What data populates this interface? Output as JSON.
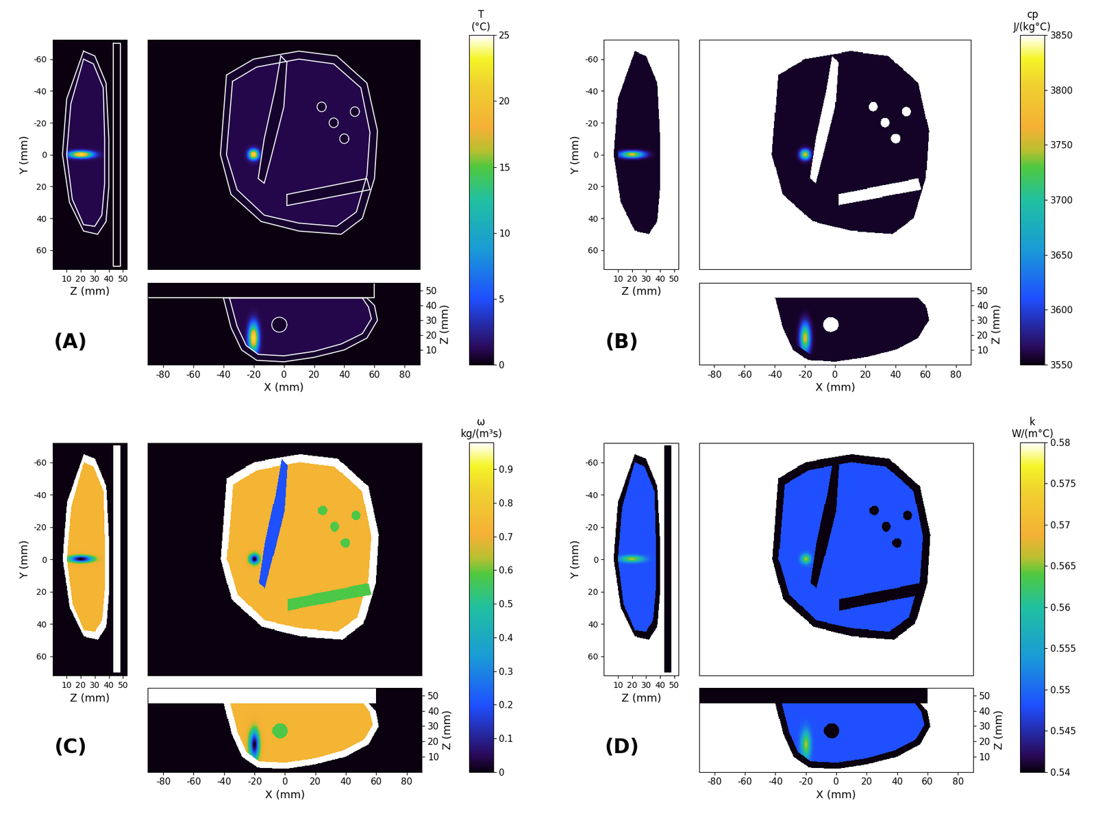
{
  "chart_data": [
    {
      "type": "heatmap",
      "label": "(A)",
      "color": "white",
      "colorbar": {
        "title": "T\n(°C)",
        "range": [
          0,
          25
        ],
        "ticks": [
          0,
          5,
          10,
          15,
          20,
          25
        ]
      },
      "values": {
        "background": 0,
        "top": 0,
        "fat": 0.5,
        "liver": 1.0,
        "vessel": 0.5,
        "band": 0.5,
        "small": 0.5,
        "hotspot": 22
      }
    },
    {
      "type": "heatmap",
      "label": "(B)",
      "colorbar": {
        "title": "cp\nJ/(kg°C)",
        "range": [
          3550,
          3850
        ],
        "ticks": [
          3550,
          3600,
          3650,
          3700,
          3750,
          3800,
          3850
        ]
      },
      "values": {
        "background": 3850,
        "top": 3850,
        "fat": 3555,
        "liver": 3555,
        "vessel": 3850,
        "band": 3850,
        "small": 3850,
        "hotspot": 3760
      }
    },
    {
      "type": "heatmap",
      "label": "(C)",
      "colorbar": {
        "title": "ω\nkg/(m³s)",
        "range": [
          0,
          0.98
        ],
        "ticks": [
          0,
          0.1,
          0.2,
          0.3,
          0.4,
          0.5,
          0.6,
          0.7,
          0.8,
          0.9
        ]
      },
      "values": {
        "background": 0,
        "top": 0.98,
        "fat": 0.98,
        "liver": 0.72,
        "vessel": 0.2,
        "band": 0.58,
        "small": 0.58,
        "hotspot": 0
      }
    },
    {
      "type": "heatmap",
      "label": "(D)",
      "colorbar": {
        "title": "k\nW/(m°C)",
        "range": [
          0.54,
          0.58
        ],
        "ticks": [
          0.54,
          0.545,
          0.55,
          0.555,
          0.56,
          0.565,
          0.57,
          0.575,
          0.58
        ]
      },
      "values": {
        "background": 0.58,
        "top": 0.54,
        "fat": 0.54,
        "liver": 0.548,
        "vessel": 0.54,
        "band": 0.54,
        "small": 0.54,
        "hotspot": 0.566
      }
    }
  ],
  "views": {
    "yz": {
      "xlabel": "Z (mm)",
      "ylabel": "Y (mm)",
      "xlim": [
        0,
        53
      ],
      "ylim": [
        72,
        -72
      ],
      "xticks": [
        10,
        20,
        30,
        40,
        50
      ],
      "yticks": [
        -60,
        -40,
        -20,
        0,
        20,
        40,
        60
      ]
    },
    "xy": {
      "xlim": [
        -90,
        90
      ],
      "ylim": [
        72,
        -72
      ],
      "tick_labels": false
    },
    "xz": {
      "xlabel": "X (mm)",
      "ylabel": "Z (mm)",
      "xlim": [
        -90,
        90
      ],
      "ylim": [
        0,
        55
      ],
      "xticks": [
        -80,
        -60,
        -40,
        -20,
        0,
        20,
        40,
        60,
        80
      ],
      "yticks": [
        10,
        20,
        30,
        40,
        50
      ]
    }
  },
  "geometry": {
    "xy": {
      "fat": [
        [
          -38,
          -50
        ],
        [
          -20,
          -60
        ],
        [
          10,
          -65
        ],
        [
          35,
          -62
        ],
        [
          55,
          -45
        ],
        [
          62,
          -15
        ],
        [
          60,
          15
        ],
        [
          52,
          40
        ],
        [
          38,
          50
        ],
        [
          10,
          48
        ],
        [
          -15,
          42
        ],
        [
          -35,
          25
        ],
        [
          -42,
          0
        ]
      ],
      "liver": [
        [
          -34,
          -46
        ],
        [
          -18,
          -55
        ],
        [
          10,
          -60
        ],
        [
          33,
          -57
        ],
        [
          51,
          -42
        ],
        [
          57,
          -14
        ],
        [
          55,
          13
        ],
        [
          48,
          36
        ],
        [
          35,
          45
        ],
        [
          10,
          43
        ],
        [
          -13,
          38
        ],
        [
          -31,
          22
        ],
        [
          -38,
          0
        ]
      ],
      "vessel": [
        [
          -2,
          -62
        ],
        [
          2,
          -58
        ],
        [
          0,
          -30
        ],
        [
          -8,
          0
        ],
        [
          -13,
          18
        ],
        [
          -17,
          15
        ],
        [
          -13,
          -10
        ],
        [
          -6,
          -40
        ]
      ],
      "band": [
        [
          2,
          25
        ],
        [
          55,
          15
        ],
        [
          57,
          22
        ],
        [
          2,
          32
        ]
      ],
      "small": {
        "centers": [
          [
            25,
            -30
          ],
          [
            33,
            -20
          ],
          [
            47,
            -27
          ],
          [
            40,
            -10
          ]
        ],
        "radius": 3
      },
      "hotspot": {
        "center": [
          -20,
          0
        ],
        "radii": [
          3,
          3
        ]
      }
    },
    "yz": {
      "top": [
        [
          43,
          -70
        ],
        [
          48,
          -70
        ],
        [
          48,
          70
        ],
        [
          43,
          70
        ]
      ],
      "fat": [
        [
          22,
          -65
        ],
        [
          30,
          -62
        ],
        [
          38,
          -45
        ],
        [
          40,
          -10
        ],
        [
          40,
          20
        ],
        [
          38,
          42
        ],
        [
          32,
          50
        ],
        [
          22,
          48
        ],
        [
          12,
          30
        ],
        [
          7,
          0
        ],
        [
          10,
          -35
        ]
      ],
      "liver": [
        [
          22,
          -60
        ],
        [
          29,
          -57
        ],
        [
          36,
          -42
        ],
        [
          37,
          -10
        ],
        [
          37,
          18
        ],
        [
          35,
          38
        ],
        [
          30,
          45
        ],
        [
          22,
          44
        ],
        [
          14,
          28
        ],
        [
          10,
          0
        ],
        [
          13,
          -32
        ]
      ],
      "hotspot": {
        "center": [
          20,
          0
        ],
        "radii": [
          8,
          2
        ]
      }
    },
    "xz": {
      "top": [
        [
          -90,
          45
        ],
        [
          60,
          45
        ],
        [
          60,
          55
        ],
        [
          -90,
          55
        ]
      ],
      "fat": [
        [
          -40,
          45
        ],
        [
          -35,
          25
        ],
        [
          -28,
          10
        ],
        [
          -18,
          3
        ],
        [
          0,
          2
        ],
        [
          20,
          5
        ],
        [
          40,
          10
        ],
        [
          55,
          18
        ],
        [
          62,
          30
        ],
        [
          60,
          40
        ],
        [
          55,
          45
        ]
      ],
      "liver": [
        [
          -36,
          45
        ],
        [
          -31,
          26
        ],
        [
          -25,
          13
        ],
        [
          -17,
          7
        ],
        [
          0,
          6
        ],
        [
          20,
          9
        ],
        [
          38,
          14
        ],
        [
          52,
          21
        ],
        [
          58,
          31
        ],
        [
          56,
          39
        ],
        [
          52,
          45
        ]
      ],
      "small": {
        "centers": [
          [
            -3,
            27
          ]
        ],
        "radius": 5
      },
      "hotspot": {
        "center": [
          -20,
          18
        ],
        "radii": [
          3,
          9
        ]
      }
    }
  }
}
